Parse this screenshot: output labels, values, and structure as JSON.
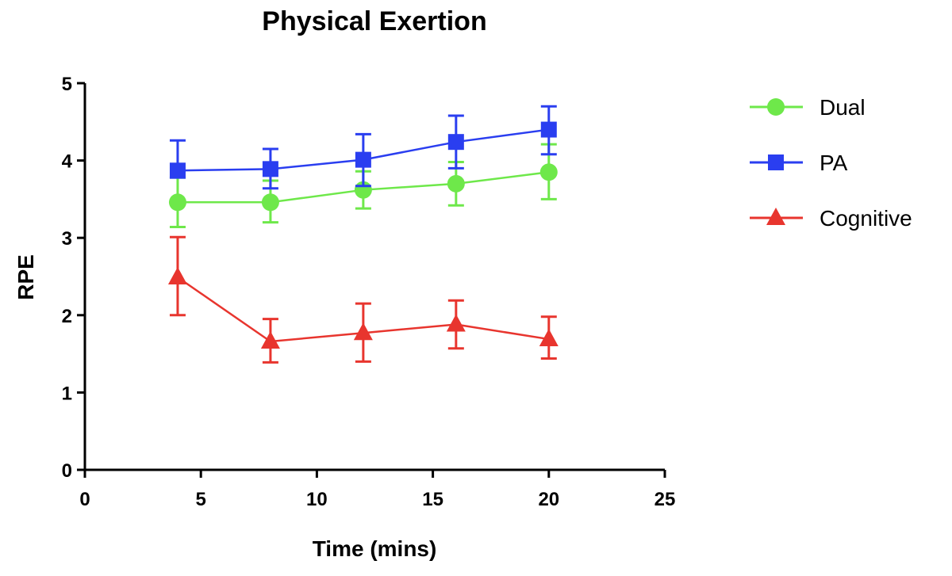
{
  "chart_data": {
    "type": "line",
    "title": "Physical Exertion",
    "xlabel": "Time (mins)",
    "ylabel": "RPE",
    "xlim": [
      0,
      25
    ],
    "ylim": [
      0,
      5
    ],
    "xticks": [
      0,
      5,
      10,
      15,
      20,
      25
    ],
    "yticks": [
      0,
      1,
      2,
      3,
      4,
      5
    ],
    "grid": false,
    "legend_position": "right",
    "x": [
      4,
      8,
      12,
      16,
      20
    ],
    "series": [
      {
        "name": "Dual",
        "color": "#6ee84a",
        "marker": "circle",
        "values": [
          3.46,
          3.46,
          3.62,
          3.7,
          3.85
        ],
        "err_low": [
          3.14,
          3.2,
          3.38,
          3.42,
          3.5
        ],
        "err_high": [
          3.78,
          3.74,
          3.86,
          3.98,
          4.21
        ]
      },
      {
        "name": "PA",
        "color": "#2a3ef0",
        "marker": "square",
        "values": [
          3.87,
          3.89,
          4.01,
          4.24,
          4.4
        ],
        "err_low": [
          3.78,
          3.64,
          3.67,
          3.9,
          4.08
        ],
        "err_high": [
          4.26,
          4.15,
          4.34,
          4.58,
          4.7
        ]
      },
      {
        "name": "Cognitive",
        "color": "#e8352e",
        "marker": "triangle",
        "values": [
          2.49,
          1.66,
          1.77,
          1.88,
          1.69
        ],
        "err_low": [
          2.0,
          1.39,
          1.4,
          1.57,
          1.44
        ],
        "err_high": [
          3.01,
          1.95,
          2.15,
          2.19,
          1.98
        ]
      }
    ]
  }
}
